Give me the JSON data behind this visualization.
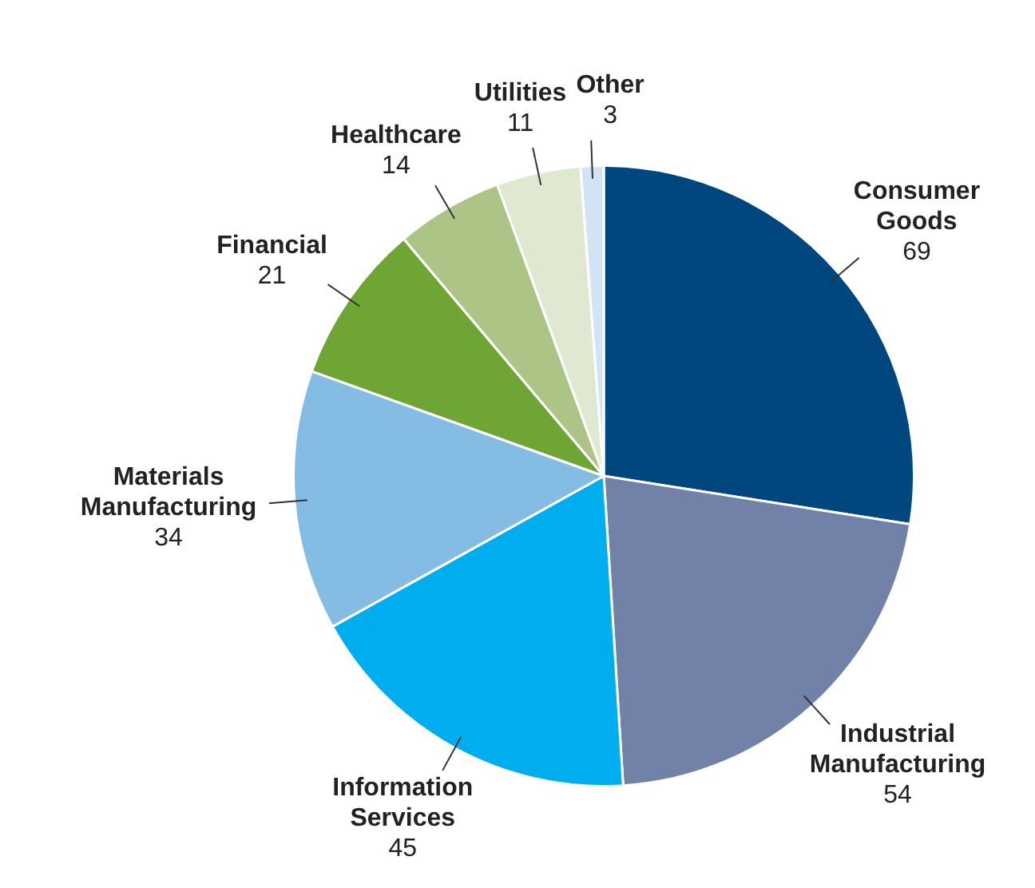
{
  "chart_data": {
    "type": "pie",
    "categories": [
      "Consumer Goods",
      "Industrial Manufacturing",
      "Information Services",
      "Materials Manufacturing",
      "Financial",
      "Healthcare",
      "Utilities",
      "Other"
    ],
    "values": [
      69,
      54,
      45,
      34,
      21,
      14,
      11,
      3
    ],
    "colors": [
      "#00467f",
      "#7281a8",
      "#00aeef",
      "#85bce4",
      "#6fa535",
      "#adc487",
      "#dfe8d0",
      "#d0e4f5"
    ],
    "data_labels": true,
    "legend": false
  }
}
